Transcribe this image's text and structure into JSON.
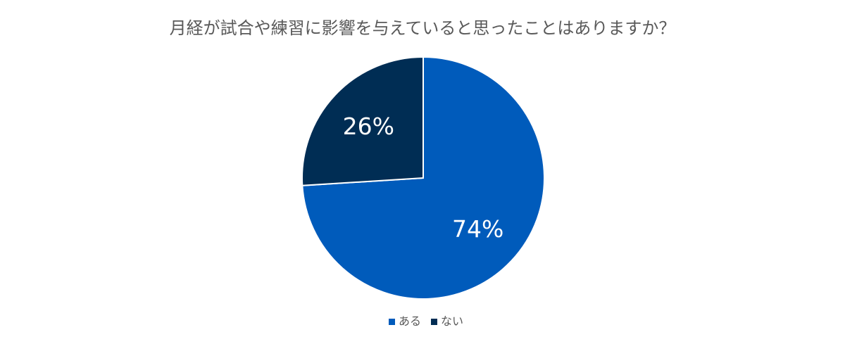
{
  "chart_data": {
    "type": "pie",
    "title": "月経が試合や練習に影響を与えていると思ったことはありますか？",
    "slices": [
      {
        "label": "ある",
        "value": 74,
        "display": "74%",
        "color": "#005bbb"
      },
      {
        "label": "ない",
        "value": 26,
        "display": "26%",
        "color": "#002d54"
      }
    ],
    "start": "12 o'clock",
    "direction": "clockwise",
    "legend": "bottom"
  }
}
